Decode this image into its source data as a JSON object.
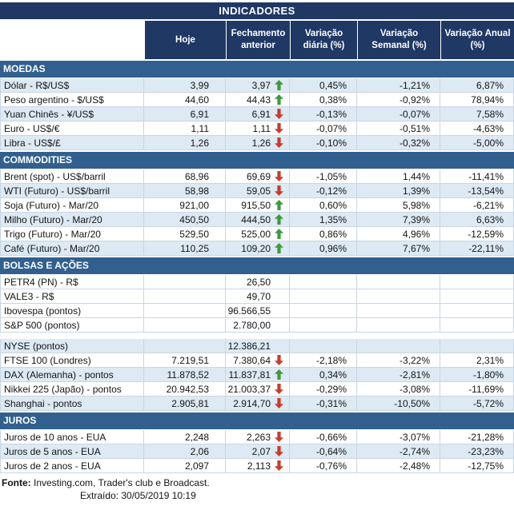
{
  "title": "INDICADORES",
  "colors": {
    "navy": "#1F3864",
    "section": "#31608F",
    "alt": "#DDE9F3",
    "grid": "#C9D6E4",
    "arrow_up": "#3E9A3E",
    "arrow_down": "#C63D2D"
  },
  "chart_data": {
    "type": "table",
    "columns": [
      "Hoje",
      "Fechamento anterior",
      "Variação diária (%)",
      "Variação Semanal (%)",
      "Variação Anual (%)"
    ],
    "sections": [
      {
        "name": "MOEDAS",
        "rows": [
          {
            "label": "Dólar - R$/US$",
            "hoje": "3,99",
            "fechamento": "3,97",
            "arrow": "up",
            "diaria": "0,45%",
            "semanal": "-1,21%",
            "anual": "6,87%",
            "alt": true
          },
          {
            "label": "Peso argentino - $/US$",
            "hoje": "44,60",
            "fechamento": "44,43",
            "arrow": "up",
            "diaria": "0,38%",
            "semanal": "-0,92%",
            "anual": "78,94%",
            "alt": false
          },
          {
            "label": "Yuan Chinês - ¥/US$",
            "hoje": "6,91",
            "fechamento": "6,91",
            "arrow": "down",
            "diaria": "-0,13%",
            "semanal": "-0,07%",
            "anual": "7,58%",
            "alt": true
          },
          {
            "label": "Euro - US$/€",
            "hoje": "1,11",
            "fechamento": "1,11",
            "arrow": "down",
            "diaria": "-0,07%",
            "semanal": "-0,51%",
            "anual": "-4,63%",
            "alt": false
          },
          {
            "label": "Libra - US$/£",
            "hoje": "1,26",
            "fechamento": "1,26",
            "arrow": "down",
            "diaria": "-0,10%",
            "semanal": "-0,32%",
            "anual": "-5,00%",
            "alt": true
          }
        ]
      },
      {
        "name": "COMMODITIES",
        "rows": [
          {
            "label": "Brent (spot) - US$/barril",
            "hoje": "68,96",
            "fechamento": "69,69",
            "arrow": "down",
            "diaria": "-1,05%",
            "semanal": "1,44%",
            "anual": "-11,41%",
            "alt": false
          },
          {
            "label": "WTI (Futuro) - US$/barril",
            "hoje": "58,98",
            "fechamento": "59,05",
            "arrow": "down",
            "diaria": "-0,12%",
            "semanal": "1,39%",
            "anual": "-13,54%",
            "alt": true
          },
          {
            "label": "Soja (Futuro) - Mar/20",
            "hoje": "921,00",
            "fechamento": "915,50",
            "arrow": "up",
            "diaria": "0,60%",
            "semanal": "5,98%",
            "anual": "-6,21%",
            "alt": false
          },
          {
            "label": "Milho (Futuro) - Mar/20",
            "hoje": "450,50",
            "fechamento": "444,50",
            "arrow": "up",
            "diaria": "1,35%",
            "semanal": "7,39%",
            "anual": "6,63%",
            "alt": true
          },
          {
            "label": "Trigo (Futuro) - Mar/20",
            "hoje": "529,50",
            "fechamento": "525,00",
            "arrow": "up",
            "diaria": "0,86%",
            "semanal": "4,96%",
            "anual": "-12,59%",
            "alt": false
          },
          {
            "label": "Café (Futuro) - Mar/20",
            "hoje": "110,25",
            "fechamento": "109,20",
            "arrow": "up",
            "diaria": "0,96%",
            "semanal": "7,67%",
            "anual": "-22,11%",
            "alt": true
          }
        ]
      },
      {
        "name": "BOLSAS E AÇÕES",
        "rows": [
          {
            "label": "PETR4 (PN) - R$",
            "hoje": "",
            "fechamento": "26,50",
            "arrow": "",
            "diaria": "",
            "semanal": "",
            "anual": "",
            "alt": false
          },
          {
            "label": "VALE3 - R$",
            "hoje": "",
            "fechamento": "49,70",
            "arrow": "",
            "diaria": "",
            "semanal": "",
            "anual": "",
            "alt": false
          },
          {
            "label": "Ibovespa (pontos)",
            "hoje": "",
            "fechamento": "96.566,55",
            "arrow": "",
            "diaria": "",
            "semanal": "",
            "anual": "",
            "alt": false
          },
          {
            "label": "S&P 500 (pontos)",
            "hoje": "",
            "fechamento": "2.780,00",
            "arrow": "",
            "diaria": "",
            "semanal": "",
            "anual": "",
            "alt": false,
            "gap_after": true
          },
          {
            "label": "NYSE (pontos)",
            "hoje": "",
            "fechamento": "12.386,21",
            "arrow": "",
            "diaria": "",
            "semanal": "",
            "anual": "",
            "alt": true
          },
          {
            "label": "FTSE 100 (Londres)",
            "hoje": "7.219,51",
            "fechamento": "7.380,64",
            "arrow": "down",
            "diaria": "-2,18%",
            "semanal": "-3,22%",
            "anual": "2,31%",
            "alt": false
          },
          {
            "label": "DAX (Alemanha) - pontos",
            "hoje": "11.878,52",
            "fechamento": "11.837,81",
            "arrow": "up",
            "diaria": "0,34%",
            "semanal": "-2,81%",
            "anual": "-1,80%",
            "alt": true
          },
          {
            "label": "Nikkei 225 (Japão) - pontos",
            "hoje": "20.942,53",
            "fechamento": "21.003,37",
            "arrow": "down",
            "diaria": "-0,29%",
            "semanal": "-3,08%",
            "anual": "-11,69%",
            "alt": false
          },
          {
            "label": "Shanghai - pontos",
            "hoje": "2.905,81",
            "fechamento": "2.914,70",
            "arrow": "down",
            "diaria": "-0,31%",
            "semanal": "-10,50%",
            "anual": "-5,72%",
            "alt": true
          }
        ]
      },
      {
        "name": "JUROS",
        "rows": [
          {
            "label": "Juros de 10 anos - EUA",
            "hoje": "2,248",
            "fechamento": "2,263",
            "arrow": "down",
            "diaria": "-0,66%",
            "semanal": "-3,07%",
            "anual": "-21,28%",
            "alt": false
          },
          {
            "label": "Juros de 5 anos - EUA",
            "hoje": "2,06",
            "fechamento": "2,07",
            "arrow": "down",
            "diaria": "-0,64%",
            "semanal": "-2,74%",
            "anual": "-23,23%",
            "alt": true
          },
          {
            "label": "Juros de 2 anos - EUA",
            "hoje": "2,097",
            "fechamento": "2,113",
            "arrow": "down",
            "diaria": "-0,76%",
            "semanal": "-2,48%",
            "anual": "-12,75%",
            "alt": false
          }
        ]
      }
    ]
  },
  "footer": {
    "source_label": "Fonte:",
    "source_text": " Investing.com, Trader's club e Broadcast.",
    "extracted": "Extraído: 30/05/2019 10:19"
  }
}
